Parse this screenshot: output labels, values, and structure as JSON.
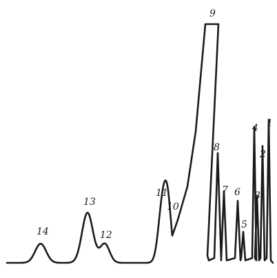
{
  "chart_data": {
    "type": "line",
    "title": "",
    "xlabel": "",
    "ylabel": "",
    "grid": false,
    "legend": "none",
    "baseline": 0,
    "ylim": [
      0,
      100
    ],
    "peaks": [
      {
        "label": "14",
        "height": 8
      },
      {
        "label": "13",
        "height": 21
      },
      {
        "label": "12",
        "height": 8
      },
      {
        "label": "11",
        "height": 25
      },
      {
        "label": "10",
        "height": 20
      },
      {
        "label": "9",
        "height": 100
      },
      {
        "label": "8",
        "height": 46
      },
      {
        "label": "7",
        "height": 30
      },
      {
        "label": "6",
        "height": 26
      },
      {
        "label": "5",
        "height": 13
      },
      {
        "label": "4",
        "height": 57
      },
      {
        "label": "3",
        "height": 28
      },
      {
        "label": "2",
        "height": 49
      },
      {
        "label": "1",
        "height": 60
      }
    ]
  }
}
